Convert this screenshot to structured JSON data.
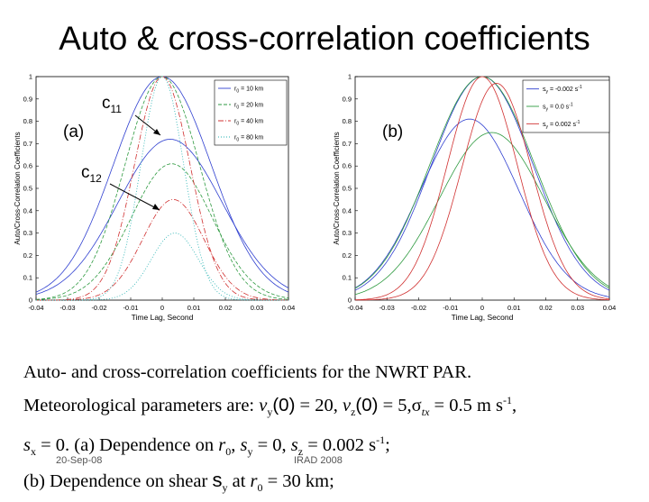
{
  "title": "Auto & cross-correlation coefficients",
  "chart_data": [
    {
      "type": "line",
      "panel_label": "(a)",
      "xlabel": "Time Lag, Second",
      "ylabel": "Auto/Cross-Correlation Coefficients",
      "xlim": [
        -0.04,
        0.04
      ],
      "ylim": [
        0,
        1
      ],
      "x_ticks": [
        "-0.04",
        "-0.03",
        "-0.02",
        "-0.01",
        "0",
        "0.01",
        "0.02",
        "0.03",
        "0.04"
      ],
      "y_ticks": [
        "0",
        "0.1",
        "0.2",
        "0.3",
        "0.4",
        "0.5",
        "0.6",
        "0.7",
        "0.8",
        "0.9",
        "1"
      ],
      "legend_position": "top-right",
      "annotations": [
        {
          "text": "c",
          "subscript": "11",
          "points_to": "auto-correlation peaks"
        },
        {
          "text": "c",
          "subscript": "12",
          "points_to": "cross-correlation peaks"
        }
      ],
      "series": [
        {
          "name": "r₀ = 10 km",
          "legend_text": "r",
          "legend_sub": "0",
          "legend_tail": " = 10 km",
          "color": "#3040d0",
          "dash": "",
          "auto_sigma": 0.0155,
          "cross_peak": 0.72,
          "cross_center": 0.0025,
          "cross_sigma": 0.0165
        },
        {
          "name": "r₀ = 20 km",
          "legend_text": "r",
          "legend_sub": "0",
          "legend_tail": " = 20 km",
          "color": "#2e9a40",
          "dash": "4,2",
          "auto_sigma": 0.0118,
          "cross_peak": 0.61,
          "cross_center": 0.003,
          "cross_sigma": 0.0128
        },
        {
          "name": "r₀ = 40 km",
          "legend_text": "r",
          "legend_sub": "0",
          "legend_tail": " = 40 km",
          "color": "#d03030",
          "dash": "6,2,1,2",
          "auto_sigma": 0.0088,
          "cross_peak": 0.45,
          "cross_center": 0.0035,
          "cross_sigma": 0.0097
        },
        {
          "name": "r₀ = 80 km",
          "legend_text": "r",
          "legend_sub": "0",
          "legend_tail": " = 80 km",
          "color": "#20b0b0",
          "dash": "1,2",
          "auto_sigma": 0.0068,
          "cross_peak": 0.3,
          "cross_center": 0.004,
          "cross_sigma": 0.0075
        }
      ]
    },
    {
      "type": "line",
      "panel_label": "(b)",
      "xlabel": "Time Lag, Second",
      "ylabel": "Auto/Cross-Correlation Coefficients",
      "xlim": [
        -0.04,
        0.04
      ],
      "ylim": [
        0,
        1
      ],
      "x_ticks": [
        "-0.04",
        "-0.03",
        "-0.02",
        "-0.01",
        "0",
        "0.01",
        "0.02",
        "0.03",
        "0.04"
      ],
      "y_ticks": [
        "0",
        "0.1",
        "0.2",
        "0.3",
        "0.4",
        "0.5",
        "0.6",
        "0.7",
        "0.8",
        "0.9",
        "1"
      ],
      "legend_position": "top-right",
      "series": [
        {
          "name": "s_y = -0.002 s⁻¹",
          "legend_text": "s",
          "legend_sub": "y",
          "legend_tail": " = -0.002 s",
          "legend_sup": "-1",
          "color": "#3040d0",
          "auto_center": 0.0,
          "auto_sigma": 0.016,
          "cross_peak": 0.81,
          "cross_center": -0.004,
          "cross_sigma": 0.0155
        },
        {
          "name": "s_y = 0.0 s⁻¹",
          "legend_text": "s",
          "legend_sub": "y",
          "legend_tail": " = 0.0 s",
          "legend_sup": "-1",
          "color": "#2e9a40",
          "auto_center": 0.0,
          "auto_sigma": 0.0165,
          "cross_peak": 0.75,
          "cross_center": 0.003,
          "cross_sigma": 0.0165
        },
        {
          "name": "s_y = 0.002 s⁻¹",
          "legend_text": "s",
          "legend_sub": "y",
          "legend_tail": " = 0.002 s",
          "legend_sup": "-1",
          "color": "#d03030",
          "auto_center": 0.0,
          "auto_sigma": 0.011,
          "cross_peak": 0.97,
          "cross_center": 0.0045,
          "cross_sigma": 0.011
        }
      ]
    }
  ],
  "caption": {
    "line1": "Auto- and cross-correlation coefficients for the NWRT PAR.",
    "line2_a": "Meteorological parameters are: ",
    "v": "v",
    "y": "y",
    "z": "z",
    "x": "x",
    "zero_arg": "(0)",
    "eq20": " = 20, ",
    "eq5": " = 5,",
    "sigma": "σ",
    "tx": "tx",
    "eq05": " = 0.5 m s",
    "minus1": "-1",
    "comma": ",",
    "s": "s",
    "eq0": " = 0. (a) Dependence on ",
    "r": "r",
    "sub0": "0",
    "eq0b": " = 0, ",
    "eq002": " = 0.002 s",
    "semi": ";",
    "line4_a": "(b) Dependence on shear ",
    "at": " at ",
    "eq30": " = 30 km;"
  },
  "footer": {
    "date": "20-Sep-08",
    "conf": "IRAD 2008"
  }
}
